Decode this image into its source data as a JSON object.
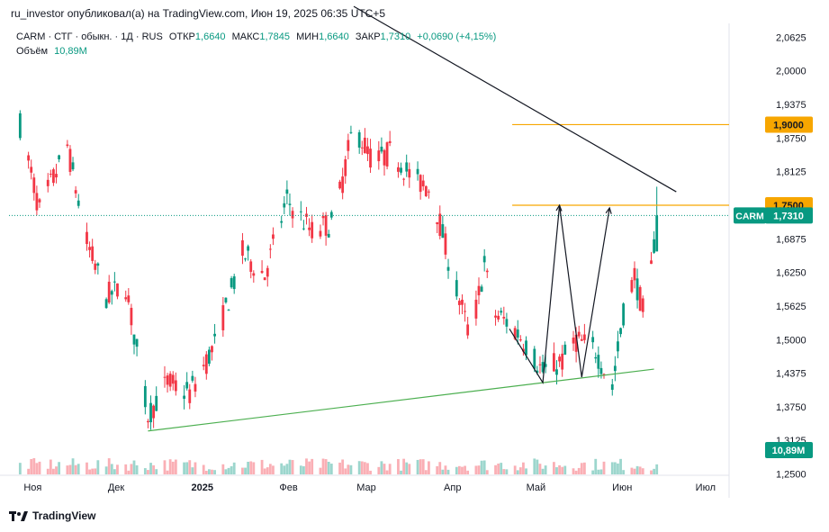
{
  "header": {
    "text": "ru_investor опубликовал(а) на TradingView.com, Июн 19, 2025 06:35 UTC+5"
  },
  "legend": {
    "symbol": "CARM · СТГ · обыкн. · 1Д · RUS",
    "open_label": "ОТКР",
    "open": "1,6640",
    "high_label": "МАКС",
    "high": "1,7845",
    "low_label": "МИН",
    "low": "1,6640",
    "close_label": "ЗАКР",
    "close": "1,7310",
    "change": "+0,0690 (+4,15%)",
    "volume_label": "Объём",
    "volume": "10,89M"
  },
  "footer": {
    "brand": "TradingView"
  },
  "colors": {
    "up": "#089981",
    "down": "#F23645",
    "level": "#F7A600",
    "trend_support": "#4CAF50",
    "trend_resist": "#131722"
  },
  "chart_data": {
    "type": "candlestick",
    "symbol": "CARM",
    "y_ticks": [
      "2,0625",
      "2,0000",
      "1,9375",
      "1,8750",
      "1,8125",
      "1,6875",
      "1,6250",
      "1,5625",
      "1,5000",
      "1,4375",
      "1,3750",
      "1,3125",
      "1,2500"
    ],
    "y_range": [
      1.25,
      2.09
    ],
    "x_ticks": [
      "Ноя",
      "Дек",
      "2025",
      "Фев",
      "Мар",
      "Апр",
      "Май",
      "Июн",
      "Июл"
    ],
    "price_levels": [
      {
        "label": "1,9000",
        "value": 1.9
      },
      {
        "label": "1,7500",
        "value": 1.75
      }
    ],
    "last_price": {
      "symbol": "CARM",
      "label": "1,7310",
      "value": 1.731
    },
    "last_volume": {
      "label": "10,89M"
    },
    "trendlines": [
      {
        "name": "resistance",
        "from": [
          "2025-03-01",
          2.12
        ],
        "to": [
          "2025-06-25",
          1.775
        ]
      },
      {
        "name": "support",
        "from": [
          "2024-12-17",
          1.33
        ],
        "to": [
          "2025-06-17",
          1.445
        ]
      }
    ],
    "anchors": [
      {
        "date": "2024-11-01",
        "close": 1.9
      },
      {
        "date": "2024-11-08",
        "close": 1.74
      },
      {
        "date": "2024-11-18",
        "close": 1.86
      },
      {
        "date": "2024-11-25",
        "close": 1.68
      },
      {
        "date": "2024-12-02",
        "close": 1.58
      },
      {
        "date": "2024-12-09",
        "close": 1.6
      },
      {
        "date": "2024-12-17",
        "close": 1.36
      },
      {
        "date": "2024-12-24",
        "close": 1.42
      },
      {
        "date": "2025-01-01",
        "close": 1.4
      },
      {
        "date": "2025-01-10",
        "close": 1.49
      },
      {
        "date": "2025-01-20",
        "close": 1.66
      },
      {
        "date": "2025-01-28",
        "close": 1.62
      },
      {
        "date": "2025-02-05",
        "close": 1.76
      },
      {
        "date": "2025-02-14",
        "close": 1.7
      },
      {
        "date": "2025-02-22",
        "close": 1.72
      },
      {
        "date": "2025-03-01",
        "close": 1.9
      },
      {
        "date": "2025-03-08",
        "close": 1.83
      },
      {
        "date": "2025-03-15",
        "close": 1.85
      },
      {
        "date": "2025-03-22",
        "close": 1.8
      },
      {
        "date": "2025-03-29",
        "close": 1.78
      },
      {
        "date": "2025-04-05",
        "close": 1.63
      },
      {
        "date": "2025-04-12",
        "close": 1.5
      },
      {
        "date": "2025-04-17",
        "close": 1.64
      },
      {
        "date": "2025-04-20",
        "close": 1.55
      },
      {
        "date": "2025-04-26",
        "close": 1.53
      },
      {
        "date": "2025-05-01",
        "close": 1.5
      },
      {
        "date": "2025-05-08",
        "close": 1.44
      },
      {
        "date": "2025-05-15",
        "close": 1.46
      },
      {
        "date": "2025-05-20",
        "close": 1.5
      },
      {
        "date": "2025-05-27",
        "close": 1.48
      },
      {
        "date": "2025-06-02",
        "close": 1.41
      },
      {
        "date": "2025-06-06",
        "close": 1.55
      },
      {
        "date": "2025-06-10",
        "close": 1.62
      },
      {
        "date": "2025-06-14",
        "close": 1.53
      },
      {
        "date": "2025-06-18",
        "close": 1.731
      }
    ]
  }
}
